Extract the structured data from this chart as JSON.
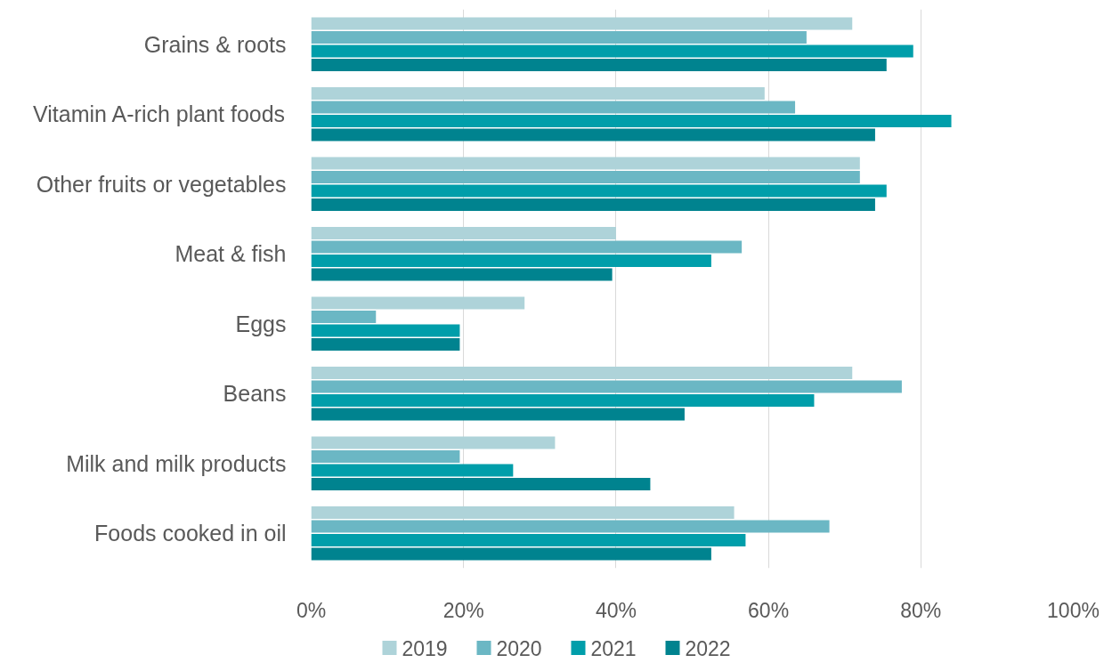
{
  "chart_data": {
    "type": "bar",
    "orientation": "horizontal",
    "categories": [
      "Grains & roots",
      "Vitamin A-rich plant foods",
      "Other fruits or vegetables",
      "Meat & fish",
      "Eggs",
      "Beans",
      "Milk and milk products",
      "Foods cooked in oil"
    ],
    "series": [
      {
        "name": "2019",
        "color": "#aed3d9",
        "values": [
          71,
          59.5,
          72,
          40,
          28,
          71,
          32,
          55.5
        ]
      },
      {
        "name": "2020",
        "color": "#6bb7c4",
        "values": [
          65,
          63.5,
          72,
          56.5,
          8.5,
          77.5,
          19.5,
          68
        ]
      },
      {
        "name": "2021",
        "color": "#009eaa",
        "values": [
          79,
          84,
          75.5,
          52.5,
          19.5,
          66,
          26.5,
          57
        ]
      },
      {
        "name": "2022",
        "color": "#00838f",
        "values": [
          75.5,
          74,
          74,
          39.5,
          19.5,
          49,
          44.5,
          52.5
        ]
      }
    ],
    "xlim": [
      0,
      100
    ],
    "xticks": [
      {
        "value": 0,
        "label": "0%"
      },
      {
        "value": 20,
        "label": "20%"
      },
      {
        "value": 40,
        "label": "40%"
      },
      {
        "value": 60,
        "label": "60%"
      },
      {
        "value": 80,
        "label": "80%"
      },
      {
        "value": 100,
        "label": "100%"
      }
    ],
    "grid": "x",
    "legend": "bottom"
  }
}
